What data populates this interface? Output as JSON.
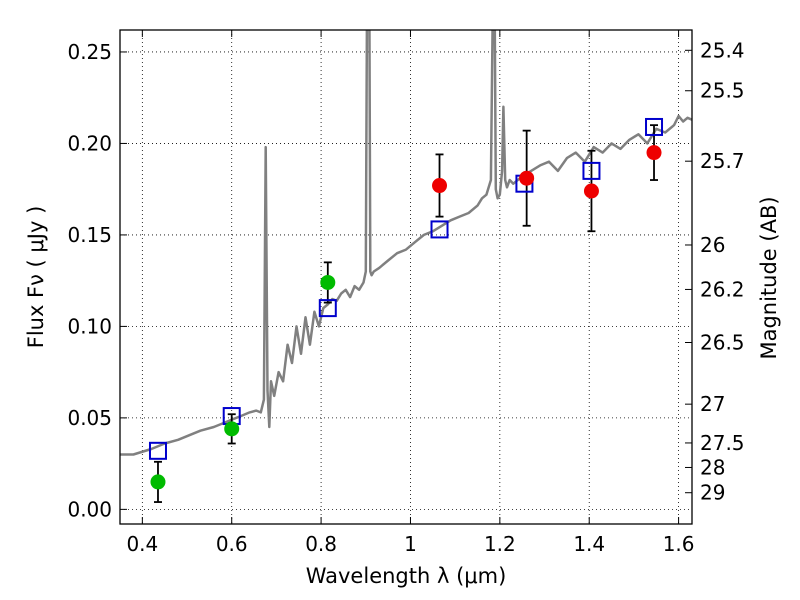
{
  "chart_data": {
    "type": "scatter",
    "title": "",
    "xlabel": "Wavelength  λ (μm)",
    "ylabel": "Flux  Fν  ( μJy )",
    "ylabel_right": "Magnitude (AB)",
    "xlim": [
      0.35,
      1.63
    ],
    "ylim": [
      -0.008,
      0.262
    ],
    "grid": true,
    "x_ticks": [
      0.4,
      0.6,
      0.8,
      1.0,
      1.2,
      1.4,
      1.6
    ],
    "x_tick_labels": [
      "0.4",
      "0.6",
      "0.8",
      "1",
      "1.2",
      "1.4",
      "1.6"
    ],
    "y_ticks": [
      0.0,
      0.05,
      0.1,
      0.15,
      0.2,
      0.25
    ],
    "y_tick_labels": [
      "0.00",
      "0.05",
      "0.10",
      "0.15",
      "0.20",
      "0.25"
    ],
    "right_ticks": [
      {
        "label": "25.4",
        "flux": 0.2509
      },
      {
        "label": "25.5",
        "flux": 0.2288
      },
      {
        "label": "25.7",
        "flux": 0.1903
      },
      {
        "label": "26",
        "flux": 0.1445
      },
      {
        "label": "26.2",
        "flux": 0.1202
      },
      {
        "label": "26.5",
        "flux": 0.0912
      },
      {
        "label": "27",
        "flux": 0.0575
      },
      {
        "label": "27.5",
        "flux": 0.0363
      },
      {
        "label": "28",
        "flux": 0.0229
      },
      {
        "label": "29",
        "flux": 0.0091
      }
    ],
    "series": [
      {
        "kind": "line",
        "color": "#808080",
        "x": [
          0.35,
          0.38,
          0.42,
          0.45,
          0.48,
          0.51,
          0.53,
          0.56,
          0.58,
          0.6,
          0.62,
          0.64,
          0.655,
          0.665,
          0.672,
          0.676,
          0.68,
          0.684,
          0.688,
          0.695,
          0.705,
          0.715,
          0.725,
          0.735,
          0.745,
          0.755,
          0.765,
          0.775,
          0.785,
          0.795,
          0.805,
          0.815,
          0.825,
          0.835,
          0.845,
          0.855,
          0.865,
          0.875,
          0.885,
          0.895,
          0.9,
          0.904,
          0.907,
          0.91,
          0.913,
          0.918,
          0.93,
          0.95,
          0.97,
          0.99,
          1.01,
          1.03,
          1.05,
          1.07,
          1.09,
          1.11,
          1.13,
          1.15,
          1.16,
          1.17,
          1.18,
          1.185,
          1.188,
          1.191,
          1.195,
          1.2,
          1.205,
          1.208,
          1.212,
          1.216,
          1.222,
          1.23,
          1.25,
          1.27,
          1.29,
          1.31,
          1.33,
          1.35,
          1.37,
          1.39,
          1.41,
          1.43,
          1.45,
          1.47,
          1.49,
          1.51,
          1.53,
          1.55,
          1.57,
          1.59,
          1.6,
          1.61,
          1.62,
          1.63
        ],
        "y": [
          0.03,
          0.03,
          0.033,
          0.036,
          0.038,
          0.041,
          0.043,
          0.045,
          0.047,
          0.049,
          0.051,
          0.053,
          0.054,
          0.053,
          0.06,
          0.198,
          0.065,
          0.045,
          0.07,
          0.062,
          0.075,
          0.07,
          0.09,
          0.08,
          0.1,
          0.085,
          0.105,
          0.09,
          0.108,
          0.1,
          0.11,
          0.112,
          0.115,
          0.114,
          0.118,
          0.12,
          0.116,
          0.122,
          0.12,
          0.124,
          0.13,
          0.35,
          0.35,
          0.13,
          0.128,
          0.13,
          0.132,
          0.136,
          0.14,
          0.142,
          0.146,
          0.15,
          0.152,
          0.155,
          0.158,
          0.16,
          0.162,
          0.166,
          0.17,
          0.172,
          0.18,
          0.29,
          0.29,
          0.175,
          0.17,
          0.172,
          0.185,
          0.22,
          0.18,
          0.176,
          0.18,
          0.178,
          0.182,
          0.185,
          0.188,
          0.19,
          0.185,
          0.192,
          0.195,
          0.19,
          0.198,
          0.195,
          0.2,
          0.197,
          0.202,
          0.205,
          0.2,
          0.208,
          0.206,
          0.21,
          0.215,
          0.212,
          0.214,
          0.213
        ]
      },
      {
        "kind": "square",
        "color": "#0000cc",
        "x": [
          0.435,
          0.6,
          0.815,
          1.065,
          1.255,
          1.405,
          1.545
        ],
        "y": [
          0.032,
          0.051,
          0.11,
          0.153,
          0.178,
          0.185,
          0.209
        ]
      },
      {
        "kind": "circle",
        "color": "#00bb00",
        "x": [
          0.435,
          0.6,
          0.815
        ],
        "y": [
          0.015,
          0.044,
          0.124
        ],
        "err": [
          0.011,
          0.008,
          0.011
        ]
      },
      {
        "kind": "circle",
        "color": "#ee0000",
        "x": [
          1.065,
          1.26,
          1.405,
          1.545
        ],
        "y": [
          0.177,
          0.181,
          0.174,
          0.195
        ],
        "err": [
          0.017,
          0.026,
          0.022,
          0.015
        ]
      }
    ]
  }
}
